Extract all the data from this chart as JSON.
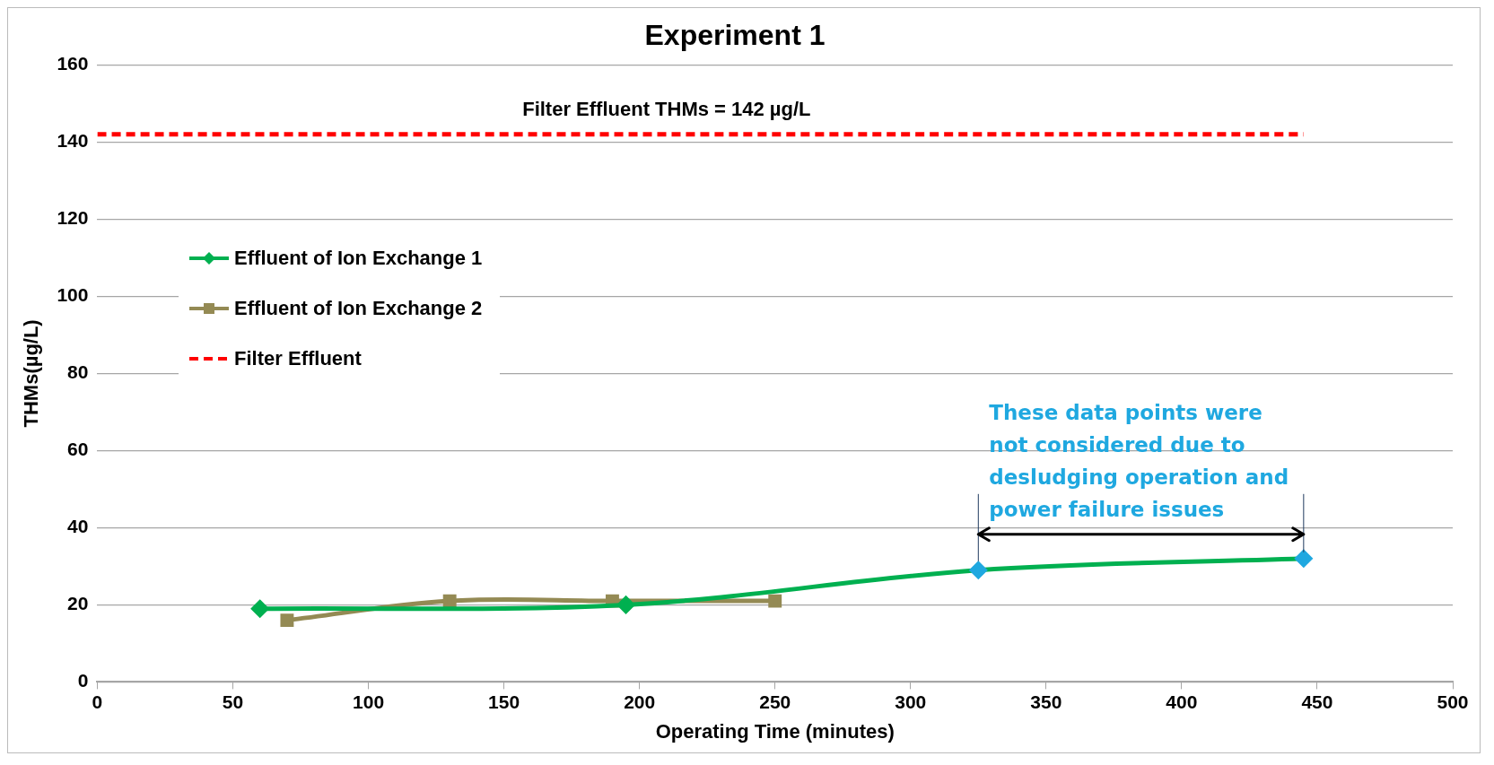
{
  "chart_data": {
    "type": "line",
    "title": "Experiment 1",
    "xlabel": "Operating Time (minutes)",
    "ylabel": "THMs(µg/L)",
    "xlim": [
      0,
      500
    ],
    "xticks": [
      0,
      50,
      100,
      150,
      200,
      250,
      300,
      350,
      400,
      450,
      500
    ],
    "ylim": [
      0,
      160
    ],
    "yticks": [
      0,
      20,
      40,
      60,
      80,
      100,
      120,
      140,
      160
    ],
    "grid": "y",
    "legend": "left",
    "series": [
      {
        "name": "Effluent of Ion Exchange 1",
        "color": "#00b050",
        "colors": [
          "#00b050",
          "#00b050",
          "#1fa8e0",
          "#1fa8e0"
        ],
        "marker": "diamond",
        "line_style": "solid",
        "x": [
          60,
          195,
          325,
          445
        ],
        "values": [
          19,
          20,
          29,
          32
        ]
      },
      {
        "name": "Effluent of Ion Exchange 2",
        "color": "#948a54",
        "marker": "square",
        "line_style": "solid",
        "x": [
          70,
          130,
          190,
          250
        ],
        "values": [
          16,
          21,
          21,
          21
        ]
      },
      {
        "name": "Filter Effluent",
        "color": "#ff0000",
        "marker": "none",
        "line_style": "dashed",
        "x": [
          0,
          445
        ],
        "values": [
          142,
          142
        ]
      }
    ],
    "annotations": [
      {
        "text": "Filter Effluent THMs = 142 µg/L",
        "x": 210,
        "y": 142
      },
      {
        "text": "These data points were not considered due to desludging operation and power failure issues",
        "x": 445,
        "y": 32
      }
    ]
  }
}
